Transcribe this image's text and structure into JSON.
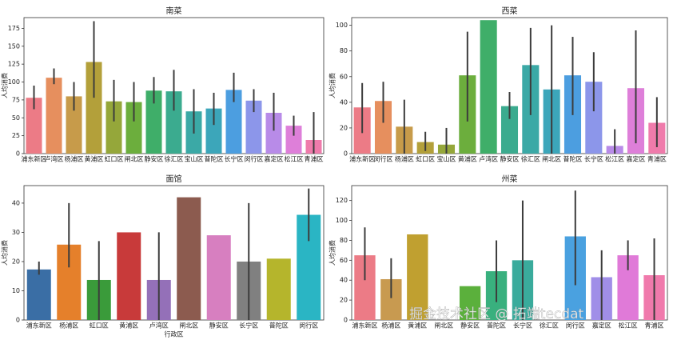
{
  "chart_data": [
    {
      "type": "bar",
      "title": "南菜",
      "ylabel": "人均消费",
      "categories": [
        "浦东新区",
        "卢湾区",
        "杨浦区",
        "黄浦区",
        "虹口区",
        "闸北区",
        "静安区",
        "徐汇区",
        "宝山区",
        "普陀区",
        "长宁区",
        "闵行区",
        "嘉定区",
        "松江区",
        "青浦区"
      ],
      "values": [
        78,
        106,
        80,
        128,
        73,
        72,
        88,
        87,
        59,
        63,
        89,
        74,
        57,
        39,
        19
      ],
      "error_low": [
        62,
        97,
        60,
        78,
        45,
        45,
        70,
        60,
        28,
        40,
        72,
        58,
        32,
        25,
        0
      ],
      "error_high": [
        95,
        119,
        100,
        185,
        103,
        100,
        107,
        117,
        90,
        85,
        113,
        90,
        85,
        53,
        58
      ],
      "colors": [
        "#ec7b86",
        "#e68f5e",
        "#c79b4a",
        "#b3a03a",
        "#95a73a",
        "#6cae3d",
        "#3fae69",
        "#3bab8f",
        "#3ba9a6",
        "#3ca6ba",
        "#4c9ee0",
        "#8c96ea",
        "#b88be8",
        "#de7fd9",
        "#ef7bab"
      ],
      "ylim": [
        0,
        190
      ],
      "yticks": [
        0,
        25,
        50,
        75,
        100,
        125,
        150,
        175
      ]
    },
    {
      "type": "bar",
      "title": "西菜",
      "ylabel": "人均消费",
      "categories": [
        "浦东新区",
        "闵行区",
        "杨浦区",
        "虹口区",
        "宝山区",
        "黄浦区",
        "卢湾区",
        "静安区",
        "徐汇区",
        "闸北区",
        "普陀区",
        "长宁区",
        "松江区",
        "嘉定区",
        "青浦区"
      ],
      "values": [
        36,
        41,
        21,
        9,
        7,
        61,
        104,
        37,
        69,
        50,
        61,
        56,
        6,
        51,
        24
      ],
      "error_low": [
        16,
        24,
        0,
        2,
        0,
        25,
        null,
        27,
        30,
        0,
        30,
        33,
        0,
        8,
        5
      ],
      "error_high": [
        55,
        56,
        42,
        17,
        20,
        95,
        null,
        48,
        98,
        100,
        91,
        79,
        19,
        96,
        44
      ],
      "colors": [
        "#ec7b86",
        "#e68f5e",
        "#c79b4a",
        "#b3a03a",
        "#95a73a",
        "#6cae3d",
        "#3fae69",
        "#3bab8f",
        "#3ba9a6",
        "#3ca6ba",
        "#4c9ee0",
        "#8c96ea",
        "#b88be8",
        "#de7fd9",
        "#ef7bab"
      ],
      "ylim": [
        0,
        106
      ],
      "yticks": [
        0,
        20,
        40,
        60,
        80,
        100
      ]
    },
    {
      "type": "bar",
      "title": "面馆",
      "xlabel": "行政区",
      "ylabel": "人均消费",
      "categories": [
        "浦东新区",
        "杨浦区",
        "虹口区",
        "黄浦区",
        "卢湾区",
        "闸北区",
        "静安区",
        "长宁区",
        "普陀区",
        "闵行区"
      ],
      "values": [
        17.3,
        25.8,
        13.7,
        30,
        13.7,
        42,
        29,
        20,
        21,
        36
      ],
      "error_low": [
        15.5,
        18,
        0,
        null,
        0,
        null,
        null,
        0,
        null,
        27
      ],
      "error_high": [
        20,
        40,
        27,
        null,
        30,
        null,
        null,
        40,
        null,
        45
      ],
      "colors": [
        "#3a6ea5",
        "#e5802b",
        "#3a9b3a",
        "#c83a3a",
        "#9470b8",
        "#8c5b4f",
        "#d77fc0",
        "#808080",
        "#b5b52c",
        "#2ab5c4"
      ],
      "ylim": [
        0,
        46
      ],
      "yticks": [
        0,
        10,
        20,
        30,
        40
      ]
    },
    {
      "type": "bar",
      "title": "州菜",
      "ylabel": "人均消费",
      "categories": [
        "浦东新区",
        "杨浦区",
        "黄浦区",
        "闸北区",
        "静安区",
        "普陀区",
        "长宁区",
        "徐汇区",
        "闵行区",
        "嘉定区",
        "松江区",
        "青浦区"
      ],
      "values": [
        65,
        41,
        86,
        null,
        34,
        49,
        60,
        null,
        84,
        43,
        65,
        45
      ],
      "error_low": [
        40,
        22,
        null,
        null,
        null,
        18,
        0,
        null,
        35,
        0,
        50,
        0
      ],
      "error_high": [
        93,
        62,
        null,
        null,
        null,
        80,
        120,
        null,
        130,
        70,
        80,
        82
      ],
      "colors": [
        "#ec7b86",
        "#c89a50",
        "#c0a030",
        "#9fa534",
        "#5bb03c",
        "#39b07e",
        "#3aab9c",
        "#3da8b5",
        "#4aa1e0",
        "#a08ee8",
        "#e07ad8",
        "#f07aac"
      ],
      "ylim": [
        0,
        135
      ],
      "yticks": [
        0,
        20,
        40,
        60,
        80,
        100,
        120
      ]
    }
  ],
  "watermark": "掘金技术社区 @ 拓端tecdat"
}
